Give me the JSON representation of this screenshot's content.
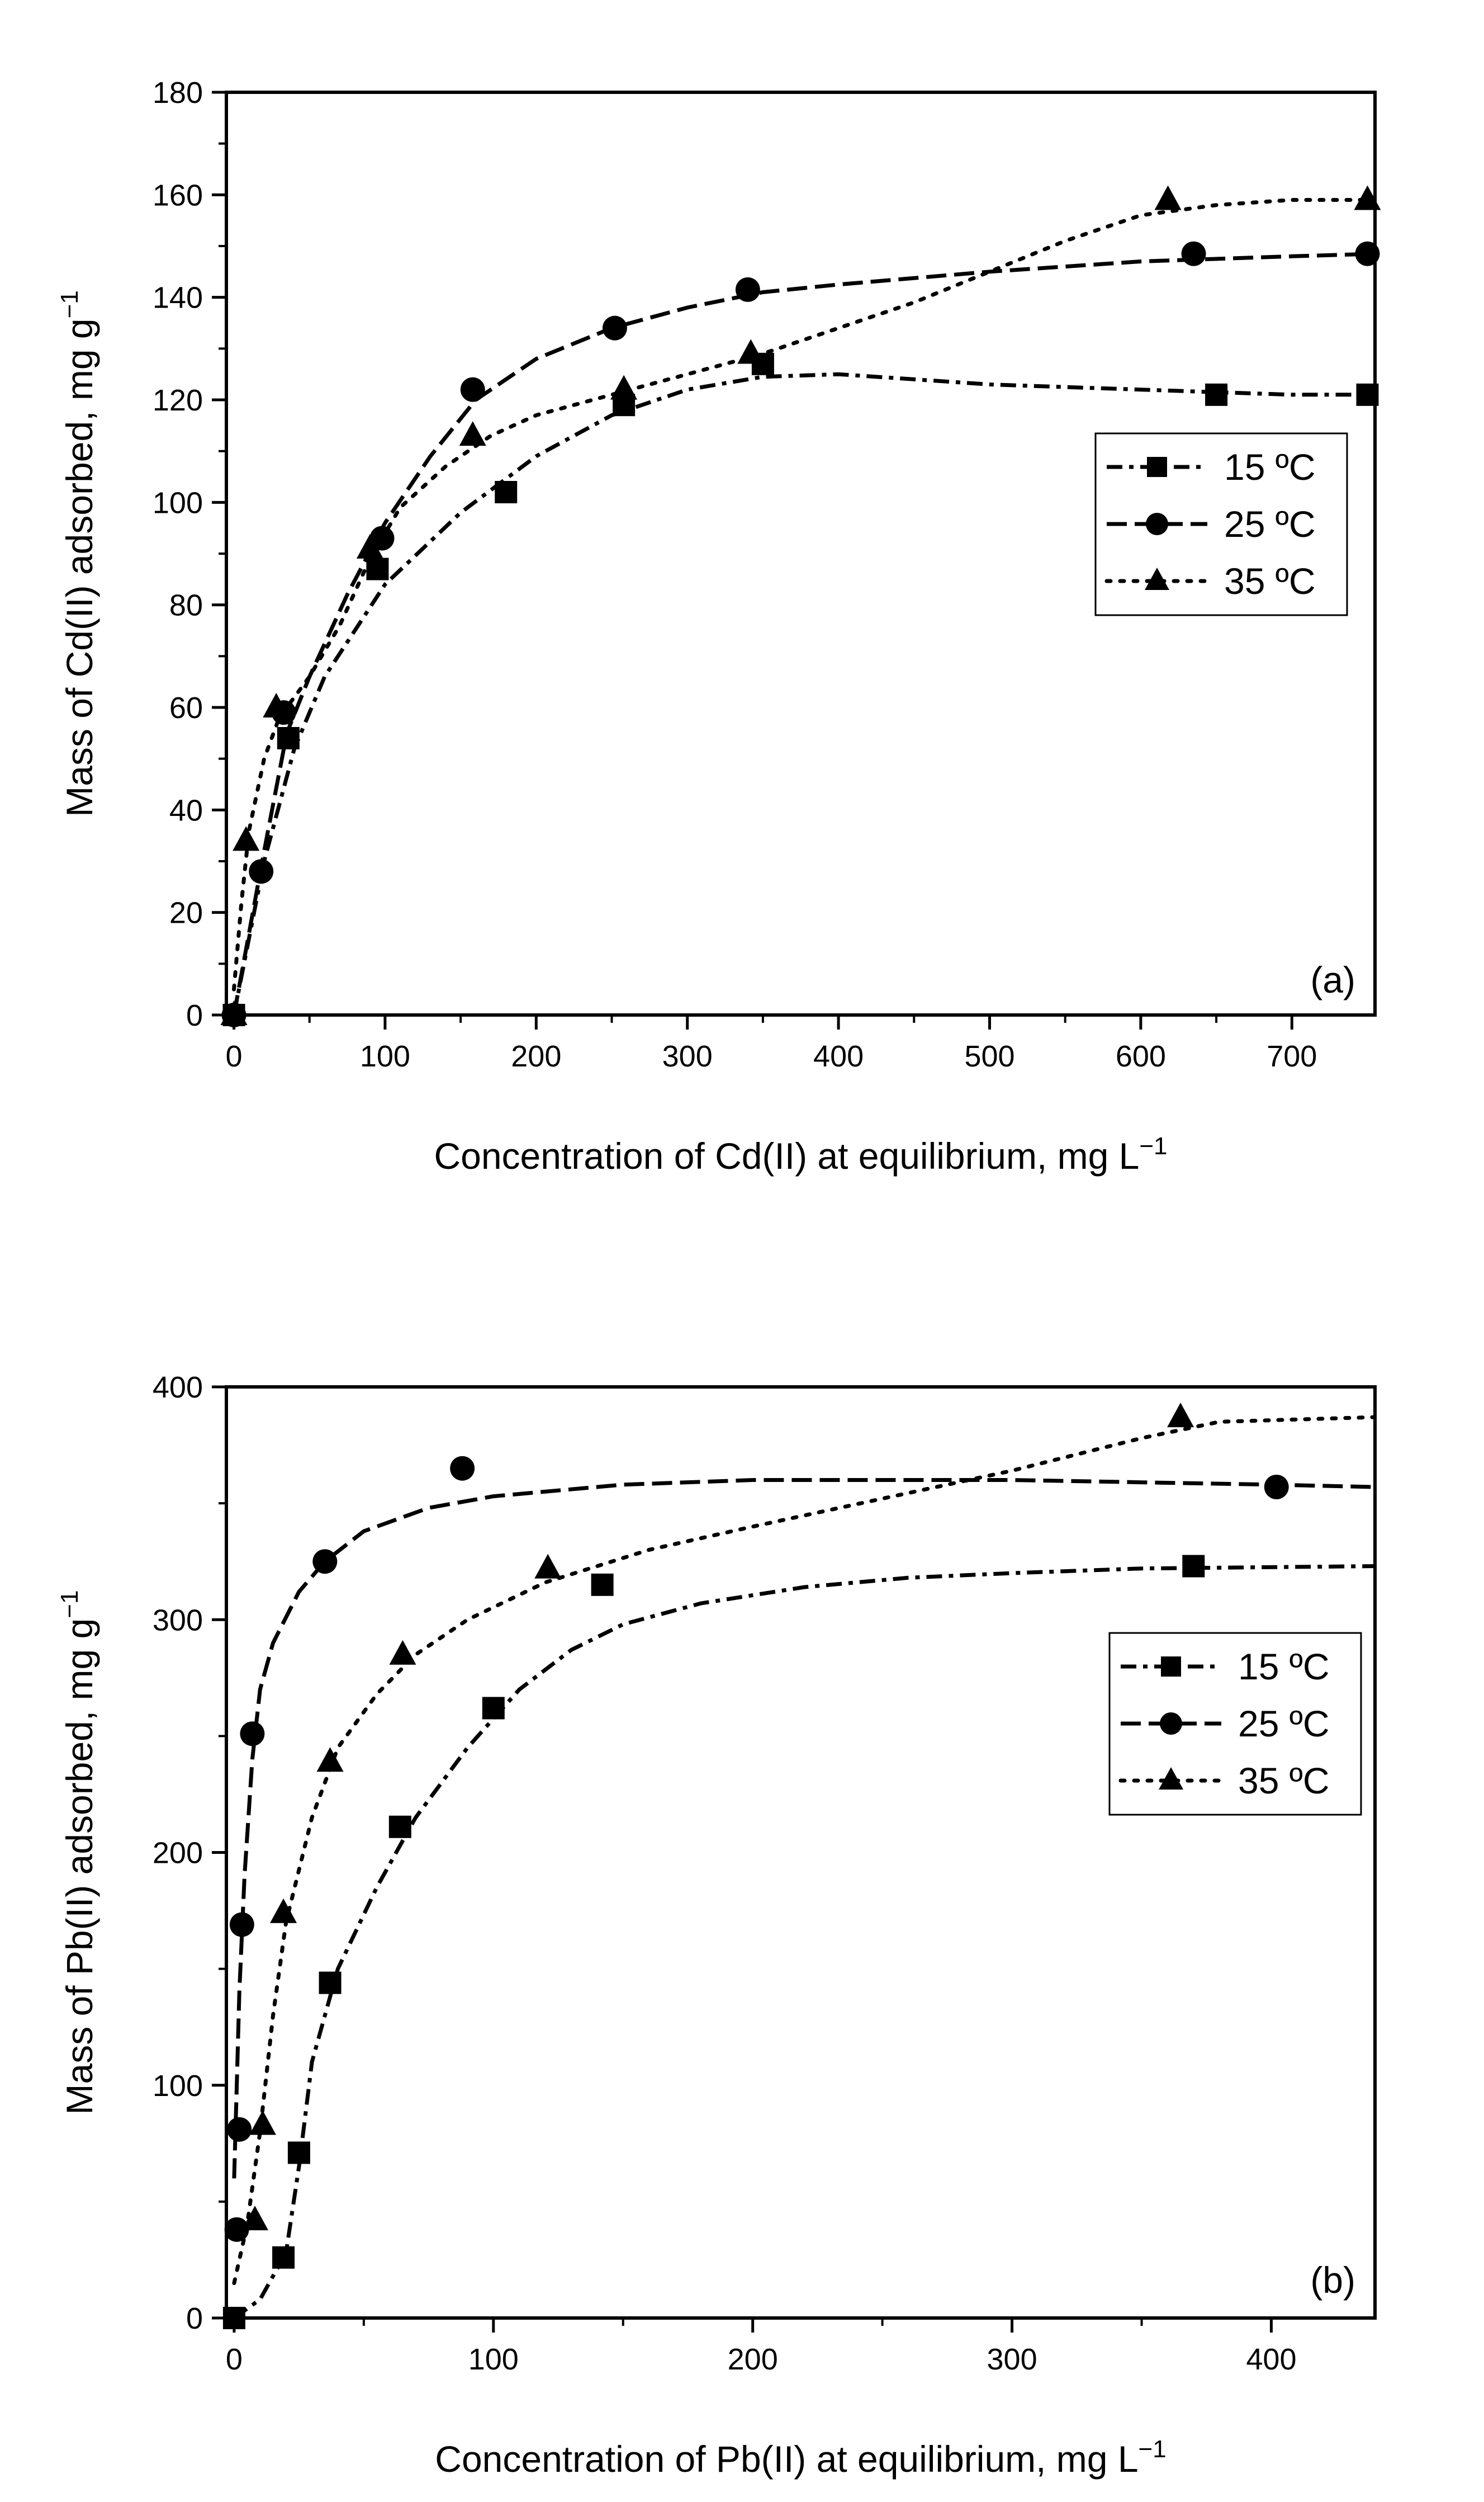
{
  "chart_data": [
    {
      "type": "scatter",
      "panel_label": "(a)",
      "xlabel": "Concentration of Cd(II) at equilibrium, mg L",
      "xlabel_sup": "−1",
      "ylabel": "Mass of Cd(II) adsorbed, mg g",
      "ylabel_sup": "−1",
      "xlim": [
        -5,
        755
      ],
      "ylim": [
        0,
        180
      ],
      "x_ticks": [
        0,
        100,
        200,
        300,
        400,
        500,
        600,
        700
      ],
      "y_ticks": [
        0,
        20,
        40,
        60,
        80,
        100,
        120,
        140,
        160,
        180
      ],
      "x_tick_labels": [
        "0",
        "100",
        "200",
        "300",
        "400",
        "500",
        "600",
        "700"
      ],
      "y_tick_labels": [
        "0",
        "20",
        "40",
        "60",
        "80",
        "100",
        "120",
        "140",
        "160",
        "180"
      ],
      "legend_position": "center-right",
      "series": [
        {
          "name": "15 ºC",
          "marker": "square",
          "line": "dash-dot",
          "points": [
            [
              0,
              0
            ],
            [
              36,
              54
            ],
            [
              95,
              87
            ],
            [
              180,
              102
            ],
            [
              258,
              119
            ],
            [
              350,
              127
            ],
            [
              650,
              121
            ],
            [
              750,
              121
            ]
          ],
          "fit": [
            [
              0,
              0
            ],
            [
              20,
              30
            ],
            [
              40,
              52
            ],
            [
              60,
              66
            ],
            [
              100,
              84
            ],
            [
              150,
              98
            ],
            [
              200,
              109
            ],
            [
              250,
              117
            ],
            [
              300,
              122
            ],
            [
              350,
              124.5
            ],
            [
              400,
              125
            ],
            [
              450,
              124
            ],
            [
              500,
              123
            ],
            [
              600,
              122
            ],
            [
              700,
              121
            ],
            [
              755,
              121
            ]
          ]
        },
        {
          "name": "25 ºC",
          "marker": "circle",
          "line": "dash",
          "points": [
            [
              0,
              0
            ],
            [
              18,
              28
            ],
            [
              33,
              59
            ],
            [
              98,
              93
            ],
            [
              158,
              122
            ],
            [
              252,
              134
            ],
            [
              340,
              141.5
            ],
            [
              635,
              148.5
            ],
            [
              750,
              148.5
            ]
          ],
          "fit": [
            [
              0,
              0
            ],
            [
              10,
              16
            ],
            [
              20,
              32
            ],
            [
              35,
              55
            ],
            [
              50,
              66
            ],
            [
              75,
              82
            ],
            [
              100,
              96
            ],
            [
              130,
              109
            ],
            [
              160,
              120
            ],
            [
              200,
              128
            ],
            [
              250,
              134
            ],
            [
              300,
              138
            ],
            [
              350,
              141
            ],
            [
              400,
              142.5
            ],
            [
              500,
              145
            ],
            [
              600,
              147
            ],
            [
              700,
              148
            ],
            [
              755,
              148.5
            ]
          ]
        },
        {
          "name": "35 ºC",
          "marker": "triangle",
          "line": "dot",
          "points": [
            [
              0,
              0
            ],
            [
              8,
              34
            ],
            [
              28,
              60
            ],
            [
              90,
              91
            ],
            [
              158,
              113
            ],
            [
              258,
              122
            ],
            [
              342,
              129
            ],
            [
              618,
              159
            ],
            [
              750,
              159
            ]
          ],
          "fit": [
            [
              0,
              5
            ],
            [
              5,
              22
            ],
            [
              10,
              36
            ],
            [
              20,
              50
            ],
            [
              30,
              58
            ],
            [
              50,
              66
            ],
            [
              70,
              76
            ],
            [
              90,
              89
            ],
            [
              110,
              99
            ],
            [
              140,
              107
            ],
            [
              170,
              113
            ],
            [
              200,
              117
            ],
            [
              250,
              121
            ],
            [
              300,
              125
            ],
            [
              350,
              129
            ],
            [
              400,
              134
            ],
            [
              450,
              139
            ],
            [
              500,
              145
            ],
            [
              550,
              151
            ],
            [
              600,
              156
            ],
            [
              650,
              158
            ],
            [
              700,
              159
            ],
            [
              755,
              159
            ]
          ]
        }
      ]
    },
    {
      "type": "scatter",
      "panel_label": "(b)",
      "xlabel": "Concentration of Pb(II) at equilibrium, mg L",
      "xlabel_sup": "−1",
      "ylabel": "Mass of Pb(II) adsorbed, mg g",
      "ylabel_sup": "−1",
      "xlim": [
        -3,
        440
      ],
      "ylim": [
        0,
        400
      ],
      "x_ticks": [
        0,
        100,
        200,
        300,
        400
      ],
      "y_ticks": [
        0,
        100,
        200,
        300,
        400
      ],
      "x_tick_labels": [
        "0",
        "100",
        "200",
        "300",
        "400"
      ],
      "y_tick_labels": [
        "0",
        "100",
        "200",
        "300",
        "400"
      ],
      "legend_position": "center-right",
      "series": [
        {
          "name": "15 ºC",
          "marker": "square",
          "line": "dash-dot",
          "points": [
            [
              0,
              0
            ],
            [
              19,
              26
            ],
            [
              25,
              71
            ],
            [
              37,
              144
            ],
            [
              64,
              211
            ],
            [
              100,
              262
            ],
            [
              142,
              315
            ],
            [
              370,
              323
            ]
          ],
          "fit": [
            [
              0,
              0
            ],
            [
              10,
              8
            ],
            [
              20,
              28
            ],
            [
              25,
              65
            ],
            [
              30,
              110
            ],
            [
              40,
              150
            ],
            [
              55,
              185
            ],
            [
              70,
              215
            ],
            [
              90,
              245
            ],
            [
              110,
              270
            ],
            [
              130,
              287
            ],
            [
              150,
              298
            ],
            [
              180,
              307
            ],
            [
              220,
              314
            ],
            [
              260,
              318
            ],
            [
              300,
              320
            ],
            [
              350,
              322
            ],
            [
              440,
              323
            ]
          ]
        },
        {
          "name": "25 ºC",
          "marker": "circle",
          "line": "dash",
          "points": [
            [
              1,
              38
            ],
            [
              2,
              81
            ],
            [
              3,
              169
            ],
            [
              7,
              251
            ],
            [
              35,
              325
            ],
            [
              88,
              365
            ],
            [
              402,
              357
            ]
          ],
          "fit": [
            [
              0,
              60
            ],
            [
              1,
              100
            ],
            [
              2,
              140
            ],
            [
              4,
              190
            ],
            [
              7,
              240
            ],
            [
              10,
              270
            ],
            [
              15,
              290
            ],
            [
              25,
              312
            ],
            [
              35,
              325
            ],
            [
              50,
              338
            ],
            [
              75,
              348
            ],
            [
              100,
              353
            ],
            [
              150,
              358
            ],
            [
              200,
              360
            ],
            [
              300,
              360
            ],
            [
              400,
              358
            ],
            [
              440,
              357
            ]
          ]
        },
        {
          "name": "35 ºC",
          "marker": "triangle",
          "line": "dot",
          "points": [
            [
              8,
              42
            ],
            [
              11,
              83
            ],
            [
              19,
              174
            ],
            [
              37,
              239
            ],
            [
              65,
              285
            ],
            [
              121,
              322
            ],
            [
              365,
              387
            ]
          ],
          "fit": [
            [
              0,
              15
            ],
            [
              5,
              40
            ],
            [
              10,
              80
            ],
            [
              15,
              130
            ],
            [
              20,
              170
            ],
            [
              30,
              215
            ],
            [
              40,
              245
            ],
            [
              55,
              268
            ],
            [
              70,
              285
            ],
            [
              90,
              300
            ],
            [
              120,
              316
            ],
            [
              160,
              330
            ],
            [
              200,
              340
            ],
            [
              250,
              352
            ],
            [
              300,
              364
            ],
            [
              350,
              378
            ],
            [
              380,
              385
            ],
            [
              440,
              387
            ]
          ]
        }
      ]
    }
  ]
}
